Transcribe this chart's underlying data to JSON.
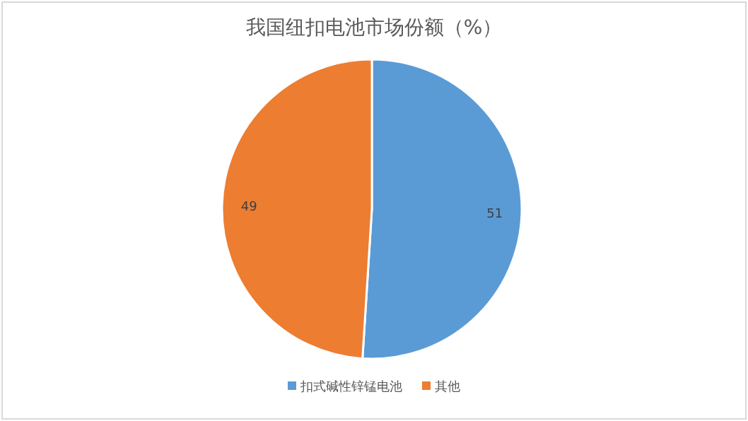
{
  "chart_data": {
    "type": "pie",
    "title": "我国纽扣电池市场份额（%）",
    "categories": [
      "扣式碱性锌锰电池",
      "其他"
    ],
    "values": [
      51,
      49
    ],
    "colors": [
      "#5b9bd5",
      "#ed7d31"
    ],
    "data_labels": true,
    "legend": "bottom"
  }
}
